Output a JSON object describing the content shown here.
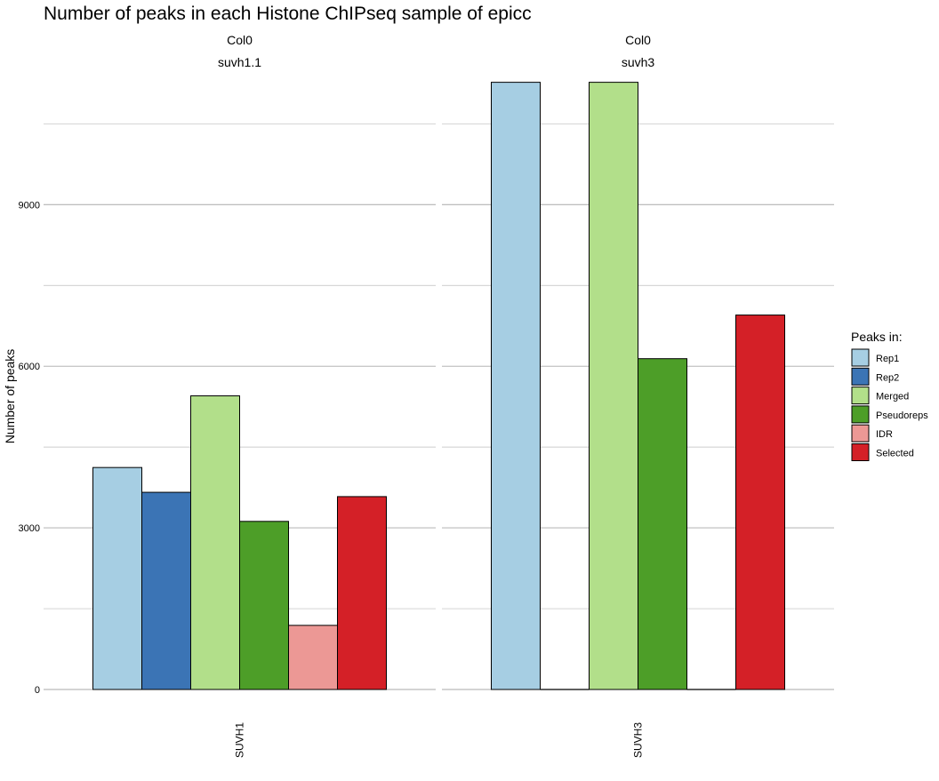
{
  "chart_data": {
    "type": "bar",
    "title": "Number of peaks in each Histone ChIPseq sample of epicc",
    "ylabel": "Number of peaks",
    "xlabel": "",
    "ylim": [
      0,
      11600
    ],
    "yticks": [
      0,
      3000,
      6000,
      9000
    ],
    "grid": true,
    "legend": {
      "title": "Peaks in:",
      "position": "right",
      "items": [
        {
          "name": "Rep1",
          "color": "#a6cee3"
        },
        {
          "name": "Rep2",
          "color": "#3b74b5"
        },
        {
          "name": "Merged",
          "color": "#b2df8a"
        },
        {
          "name": "Pseudoreps",
          "color": "#4d9e28"
        },
        {
          "name": "IDR",
          "color": "#ec9895"
        },
        {
          "name": "Selected",
          "color": "#d42027"
        }
      ]
    },
    "facets": [
      {
        "strip": [
          "Col0",
          "suvh1.1"
        ],
        "category": "SUVH1",
        "values": {
          "Rep1": 4120,
          "Rep2": 3660,
          "Merged": 5450,
          "Pseudoreps": 3120,
          "IDR": 1190,
          "Selected": 3580
        }
      },
      {
        "strip": [
          "Col0",
          "suvh3"
        ],
        "category": "SUVH3",
        "values": {
          "Rep1": 11270,
          "Rep2": 0,
          "Merged": 11270,
          "Pseudoreps": 6140,
          "IDR": 0,
          "Selected": 6950
        }
      }
    ]
  }
}
